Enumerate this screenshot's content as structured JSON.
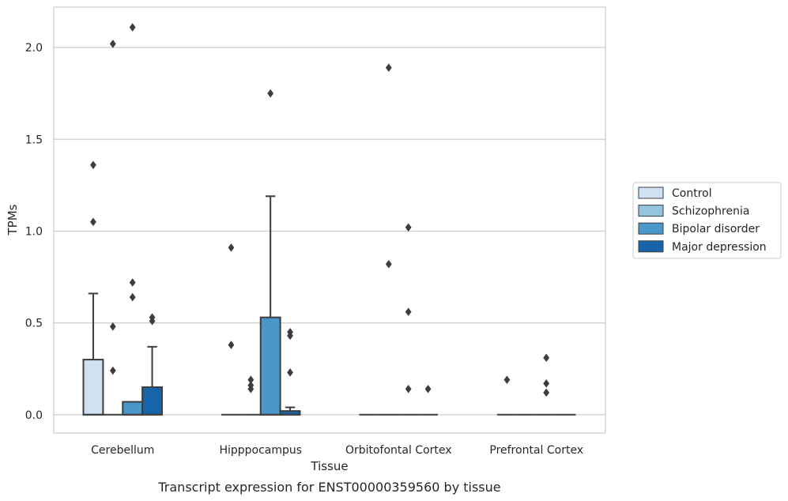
{
  "chart_data": {
    "type": "boxplot",
    "xlabel": "Tissue",
    "ylabel": "TPMs",
    "caption": "Transcript expression for ENST00000359560 by tissue",
    "ylim": [
      -0.1,
      2.22
    ],
    "yticks": [
      0.0,
      0.5,
      1.0,
      1.5,
      2.0
    ],
    "ytick_labels": [
      "0.0",
      "0.5",
      "1.0",
      "1.5",
      "2.0"
    ],
    "grid": "horizontal",
    "legend_position": "right",
    "categories": [
      "Cerebellum",
      "Hipppocampus",
      "Orbitofontal Cortex",
      "Prefrontal Cortex"
    ],
    "series": [
      {
        "name": "Control",
        "color": "#d0e1f2",
        "boxes": [
          {
            "q1": 0.0,
            "median": 0.0,
            "q3": 0.3,
            "whisker_low": 0.0,
            "whisker_high": 0.66,
            "outliers": [
              1.05,
              1.36
            ]
          },
          {
            "q1": 0.0,
            "median": 0.0,
            "q3": 0.0,
            "whisker_low": 0.0,
            "whisker_high": 0.0,
            "outliers": [
              0.38,
              0.91
            ]
          },
          {
            "q1": 0.0,
            "median": 0.0,
            "q3": 0.0,
            "whisker_low": 0.0,
            "whisker_high": 0.0,
            "outliers": []
          },
          {
            "q1": 0.0,
            "median": 0.0,
            "q3": 0.0,
            "whisker_low": 0.0,
            "whisker_high": 0.0,
            "outliers": [
              0.19
            ]
          }
        ]
      },
      {
        "name": "Schizophrenia",
        "color": "#94c4df",
        "boxes": [
          {
            "q1": 0.0,
            "median": 0.0,
            "q3": 0.0,
            "whisker_low": 0.0,
            "whisker_high": 0.0,
            "outliers": [
              0.24,
              0.48,
              2.02
            ]
          },
          {
            "q1": 0.0,
            "median": 0.0,
            "q3": 0.0,
            "whisker_low": 0.0,
            "whisker_high": 0.0,
            "outliers": [
              0.14,
              0.16,
              0.19
            ]
          },
          {
            "q1": 0.0,
            "median": 0.0,
            "q3": 0.0,
            "whisker_low": 0.0,
            "whisker_high": 0.0,
            "outliers": [
              0.82,
              1.89
            ]
          },
          {
            "q1": 0.0,
            "median": 0.0,
            "q3": 0.0,
            "whisker_low": 0.0,
            "whisker_high": 0.0,
            "outliers": []
          }
        ]
      },
      {
        "name": "Bipolar disorder",
        "color": "#4a98c9",
        "boxes": [
          {
            "q1": 0.0,
            "median": 0.0,
            "q3": 0.07,
            "whisker_low": 0.0,
            "whisker_high": 0.07,
            "outliers": [
              0.64,
              0.72,
              2.11
            ]
          },
          {
            "q1": 0.0,
            "median": 0.0,
            "q3": 0.53,
            "whisker_low": 0.0,
            "whisker_high": 1.19,
            "outliers": [
              1.75
            ]
          },
          {
            "q1": 0.0,
            "median": 0.0,
            "q3": 0.0,
            "whisker_low": 0.0,
            "whisker_high": 0.0,
            "outliers": [
              0.14,
              0.56,
              1.02
            ]
          },
          {
            "q1": 0.0,
            "median": 0.0,
            "q3": 0.0,
            "whisker_low": 0.0,
            "whisker_high": 0.0,
            "outliers": [
              0.12,
              0.17,
              0.31
            ]
          }
        ]
      },
      {
        "name": "Major depression",
        "color": "#1764ab",
        "boxes": [
          {
            "q1": 0.0,
            "median": 0.0,
            "q3": 0.15,
            "whisker_low": 0.0,
            "whisker_high": 0.37,
            "outliers": [
              0.51,
              0.53
            ]
          },
          {
            "q1": 0.0,
            "median": 0.0,
            "q3": 0.02,
            "whisker_low": 0.0,
            "whisker_high": 0.04,
            "outliers": [
              0.23,
              0.43,
              0.45
            ]
          },
          {
            "q1": 0.0,
            "median": 0.0,
            "q3": 0.0,
            "whisker_low": 0.0,
            "whisker_high": 0.0,
            "outliers": [
              0.14
            ]
          },
          {
            "q1": 0.0,
            "median": 0.0,
            "q3": 0.0,
            "whisker_low": 0.0,
            "whisker_high": 0.0,
            "outliers": []
          }
        ]
      }
    ],
    "colors": {
      "grid": "#cccccc",
      "frame": "#cccccc",
      "edge": "#3d3d3d"
    }
  }
}
